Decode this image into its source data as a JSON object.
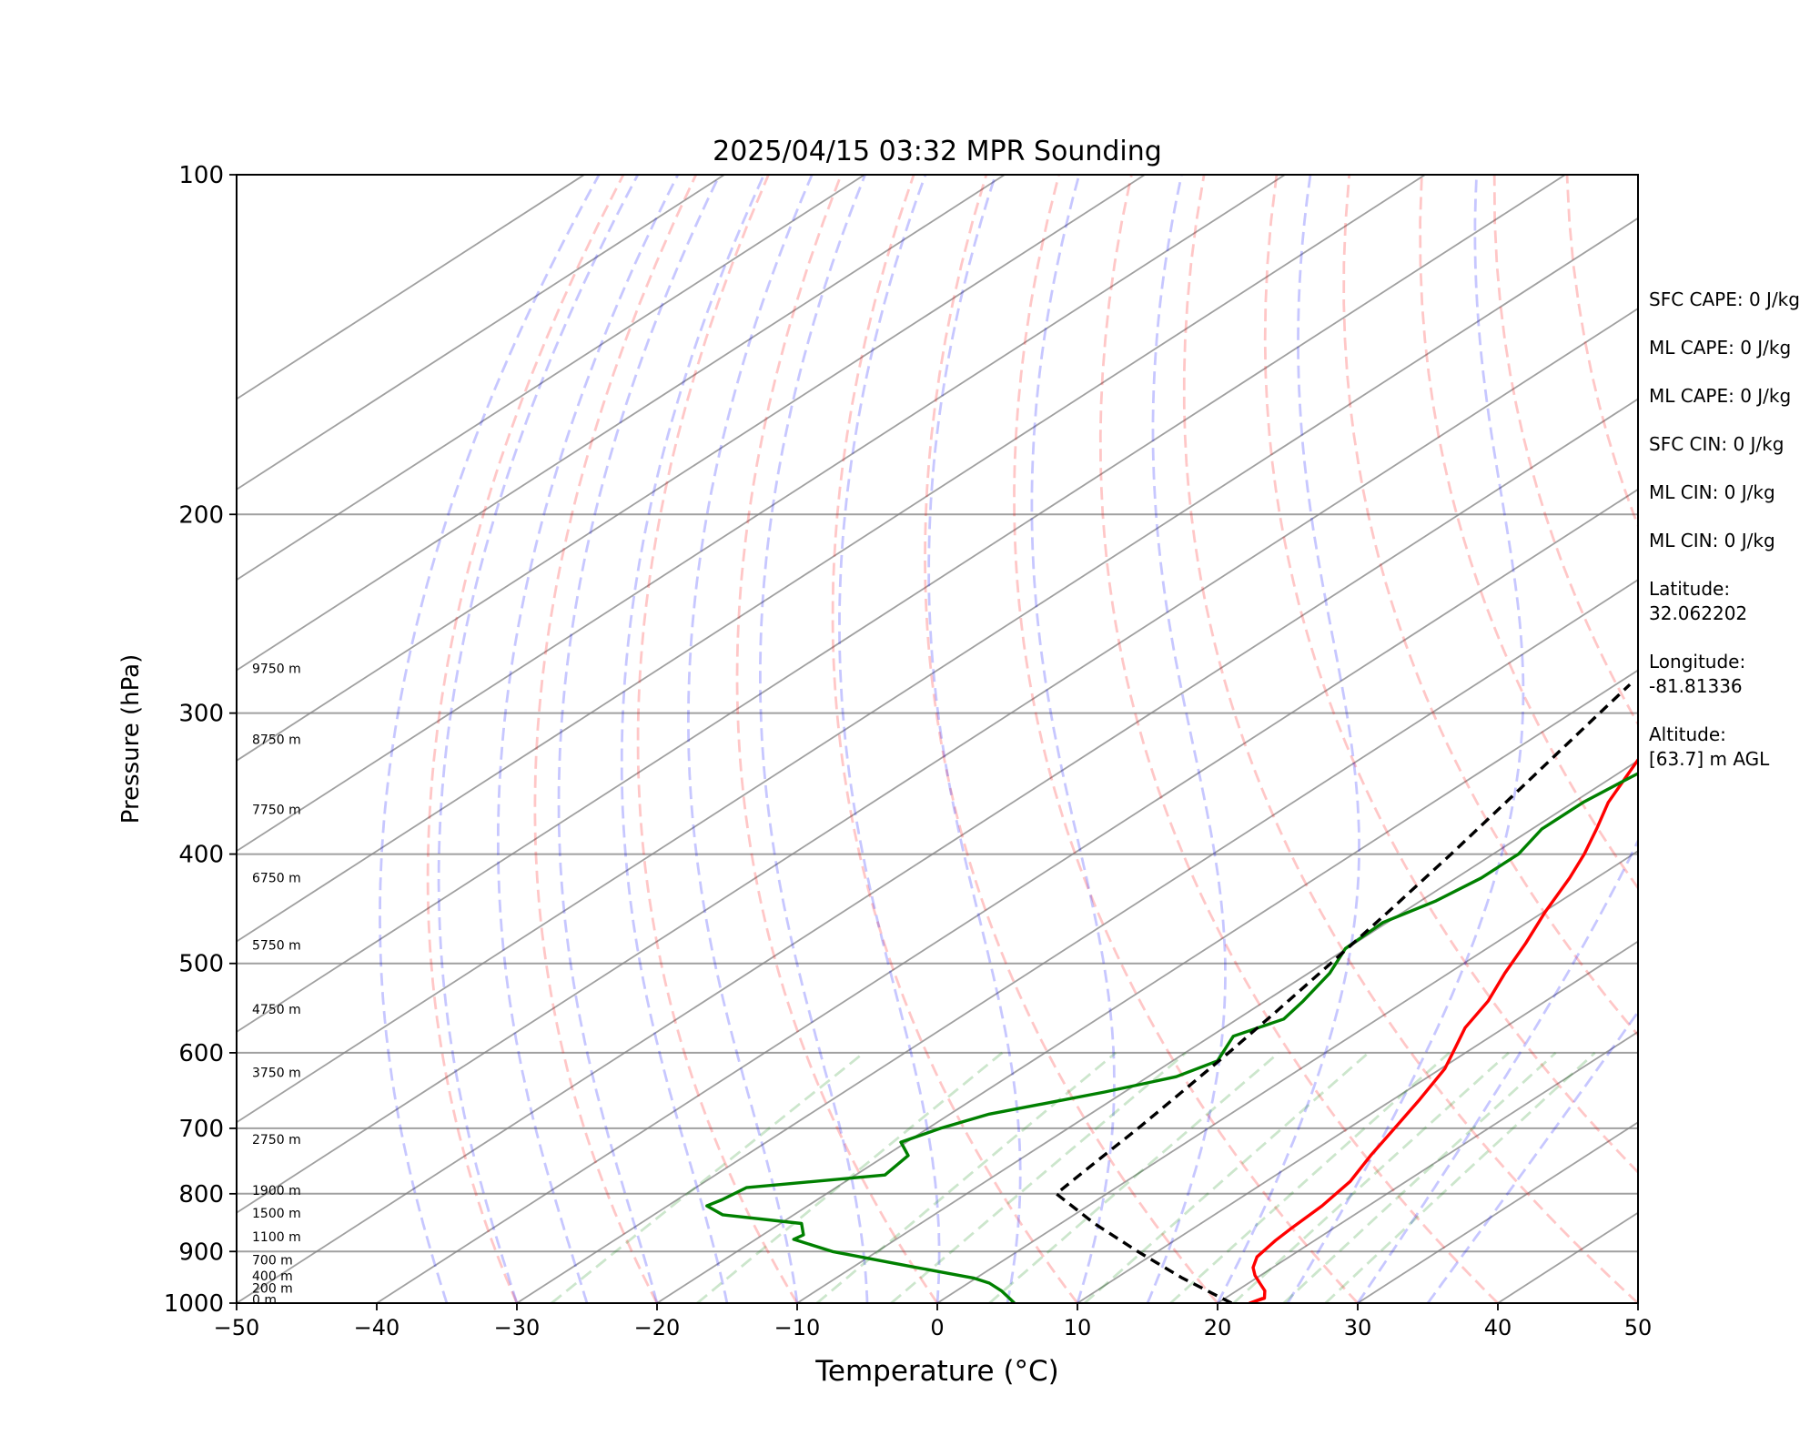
{
  "chart_data": {
    "type": "line",
    "title": "2025/04/15 03:32 MPR Sounding",
    "xlabel": "Temperature (°C)",
    "ylabel": "Pressure (hPa)",
    "xlim": [
      -50,
      50
    ],
    "ylim": [
      1000,
      100
    ],
    "y_scale": "log",
    "skew": "skew-T log-P",
    "grid": true,
    "x_ticks": [
      "−50",
      "−40",
      "−30",
      "−20",
      "−10",
      "0",
      "10",
      "20",
      "30",
      "40",
      "50"
    ],
    "y_ticks": [
      {
        "p": 100,
        "label": "100"
      },
      {
        "p": 200,
        "label": "200"
      },
      {
        "p": 300,
        "label": "300"
      },
      {
        "p": 400,
        "label": "400"
      },
      {
        "p": 500,
        "label": "500"
      },
      {
        "p": 600,
        "label": "600"
      },
      {
        "p": 700,
        "label": "700"
      },
      {
        "p": 800,
        "label": "800"
      },
      {
        "p": 900,
        "label": "900"
      },
      {
        "p": 1000,
        "label": "1000"
      }
    ],
    "height_labels": [
      {
        "p": 1000,
        "label": "0 m"
      },
      {
        "p": 977,
        "label": "200 m"
      },
      {
        "p": 953,
        "label": "400 m"
      },
      {
        "p": 922,
        "label": "700 m"
      },
      {
        "p": 880,
        "label": "1100 m"
      },
      {
        "p": 838,
        "label": "1500 m"
      },
      {
        "p": 800,
        "label": "1900 m"
      },
      {
        "p": 721,
        "label": "2750 m"
      },
      {
        "p": 629,
        "label": "3750 m"
      },
      {
        "p": 553,
        "label": "4750 m"
      },
      {
        "p": 485,
        "label": "5750 m"
      },
      {
        "p": 423,
        "label": "6750 m"
      },
      {
        "p": 368,
        "label": "7750 m"
      },
      {
        "p": 319,
        "label": "8750 m"
      },
      {
        "p": 276,
        "label": "9750 m"
      }
    ],
    "series": [
      {
        "role": "temperature",
        "color": "#ff0000",
        "points": [
          [
            990,
            22.7
          ],
          [
            1000,
            22.3
          ],
          [
            990,
            22.8
          ],
          [
            975,
            22.0
          ],
          [
            960,
            20.8
          ],
          [
            945,
            19.6
          ],
          [
            930,
            18.6
          ],
          [
            910,
            17.7
          ],
          [
            880,
            17.2
          ],
          [
            860,
            17.0
          ],
          [
            820,
            16.7
          ],
          [
            780,
            16.0
          ],
          [
            740,
            14.6
          ],
          [
            700,
            13.3
          ],
          [
            660,
            11.9
          ],
          [
            620,
            10.3
          ],
          [
            600,
            9.1
          ],
          [
            570,
            7.2
          ],
          [
            540,
            5.9
          ],
          [
            510,
            4.0
          ],
          [
            480,
            2.2
          ],
          [
            450,
            0.1
          ],
          [
            420,
            -1.9
          ],
          [
            400,
            -3.5
          ],
          [
            380,
            -5.4
          ],
          [
            360,
            -7.5
          ],
          [
            340,
            -9.2
          ],
          [
            320,
            -11.0
          ],
          [
            300,
            -13.0
          ],
          [
            283,
            -14.9
          ]
        ]
      },
      {
        "role": "dewpoint",
        "color": "#008000",
        "points": [
          [
            1000,
            5.5
          ],
          [
            990,
            4.6
          ],
          [
            975,
            3.2
          ],
          [
            960,
            1.5
          ],
          [
            950,
            -0.2
          ],
          [
            930,
            -5.4
          ],
          [
            900,
            -13.2
          ],
          [
            878,
            -17.3
          ],
          [
            870,
            -17.1
          ],
          [
            850,
            -18.5
          ],
          [
            835,
            -25.1
          ],
          [
            820,
            -27.2
          ],
          [
            810,
            -26.8
          ],
          [
            790,
            -26.4
          ],
          [
            770,
            -17.9
          ],
          [
            740,
            -18.4
          ],
          [
            720,
            -20.4
          ],
          [
            700,
            -19.1
          ],
          [
            680,
            -17.2
          ],
          [
            650,
            -11.4
          ],
          [
            630,
            -8.0
          ],
          [
            610,
            -6.8
          ],
          [
            580,
            -8.4
          ],
          [
            560,
            -6.7
          ],
          [
            540,
            -7.3
          ],
          [
            510,
            -8.5
          ],
          [
            485,
            -10.1
          ],
          [
            460,
            -10.3
          ],
          [
            440,
            -8.9
          ],
          [
            420,
            -8.2
          ],
          [
            400,
            -8.2
          ],
          [
            380,
            -9.3
          ],
          [
            360,
            -9.3
          ],
          [
            345,
            -8.8
          ],
          [
            330,
            -8.2
          ],
          [
            310,
            -8.7
          ],
          [
            290,
            -8.8
          ],
          [
            283,
            -5.6
          ]
        ]
      },
      {
        "role": "parcel",
        "color": "#000000",
        "style": "dashed",
        "points": [
          [
            1000,
            21.0
          ],
          [
            950,
            14.7
          ],
          [
            900,
            8.6
          ],
          [
            850,
            2.4
          ],
          [
            800,
            -3.6
          ],
          [
            750,
            -4.3
          ],
          [
            700,
            -5.0
          ],
          [
            650,
            -5.9
          ],
          [
            600,
            -6.9
          ],
          [
            550,
            -8.1
          ],
          [
            500,
            -9.5
          ],
          [
            450,
            -11.1
          ],
          [
            400,
            -13.0
          ],
          [
            350,
            -15.3
          ],
          [
            300,
            -18.0
          ],
          [
            283,
            -19.0
          ]
        ]
      }
    ],
    "reference_lines": [
      {
        "kind": "isotherms",
        "color": "#808080",
        "style": "solid"
      },
      {
        "kind": "dry_adiabats",
        "color": "#ff0000",
        "style": "dashed"
      },
      {
        "kind": "moist_adiabats",
        "color": "#0000ff",
        "style": "dashed"
      },
      {
        "kind": "mixing_ratio",
        "color": "#008000",
        "style": "dashed"
      }
    ]
  },
  "info": [
    {
      "text": "SFC CAPE: 0 J/kg"
    },
    {
      "text": "ML CAPE: 0 J/kg"
    },
    {
      "text": "ML CAPE: 0 J/kg"
    },
    {
      "text": "SFC CIN: 0 J/kg"
    },
    {
      "text": "ML CIN: 0 J/kg"
    },
    {
      "text": "ML CIN: 0 J/kg"
    },
    {
      "text": "Latitude:\n32.062202"
    },
    {
      "text": "Longitude:\n-81.81336"
    },
    {
      "text": "Altitude:\n[63.7] m AGL"
    }
  ]
}
